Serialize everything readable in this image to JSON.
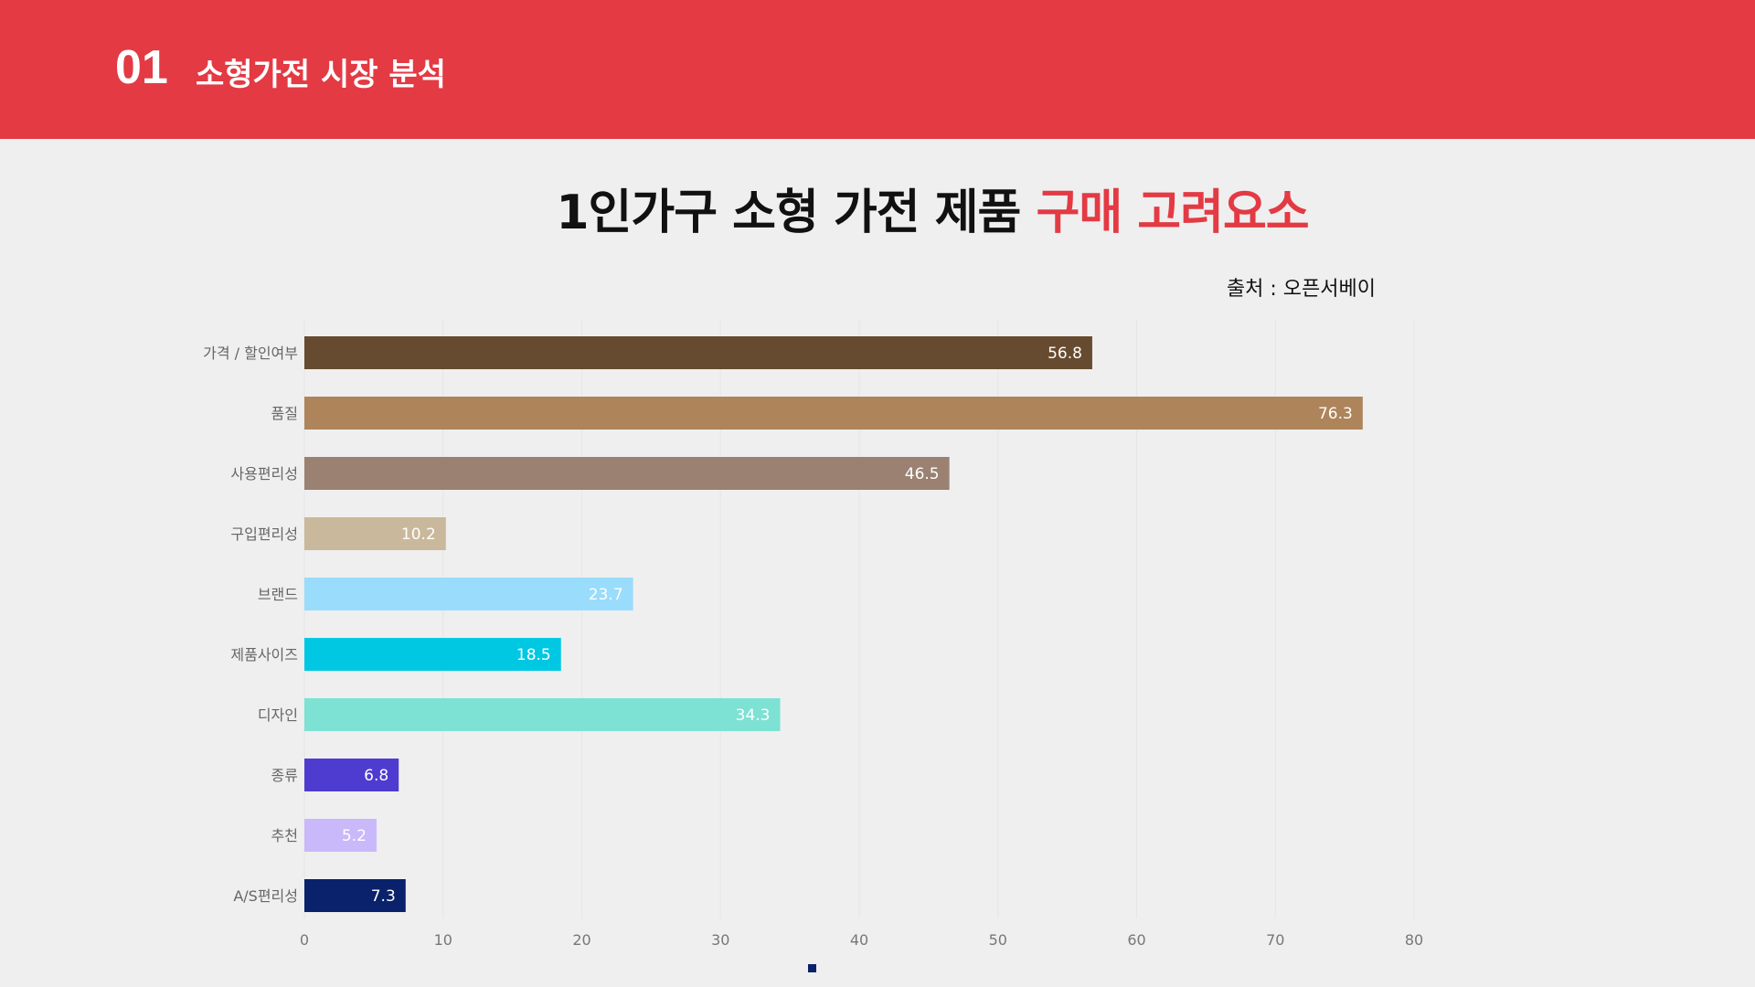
{
  "header": {
    "number": "01",
    "title": "소형가전 시장 분석",
    "color": "#e33a44"
  },
  "title": {
    "main": "1인가구 소형 가전 제품 ",
    "accent": "구매 고려요소"
  },
  "source": "출처 : 오픈서베이",
  "chart_data": {
    "type": "bar",
    "orientation": "horizontal",
    "categories": [
      "가격 / 할인여부",
      "품질",
      "사용편리성",
      "구입편리성",
      "브랜드",
      "제품사이즈",
      "디자인",
      "종류",
      "추천",
      "A/S편리성"
    ],
    "values": [
      56.8,
      76.3,
      46.5,
      10.2,
      23.7,
      18.5,
      34.3,
      6.8,
      5.2,
      7.3
    ],
    "colors": [
      "#674b30",
      "#ae845a",
      "#9b8172",
      "#c9b89b",
      "#99dcfb",
      "#00c8e2",
      "#7de2d3",
      "#4e3bd0",
      "#c9b8fa",
      "#0a216b"
    ],
    "xlim": [
      0,
      80
    ],
    "xticks": [
      0,
      10,
      20,
      30,
      40,
      50,
      60,
      70,
      80
    ],
    "grid": true,
    "data_labels": true
  }
}
